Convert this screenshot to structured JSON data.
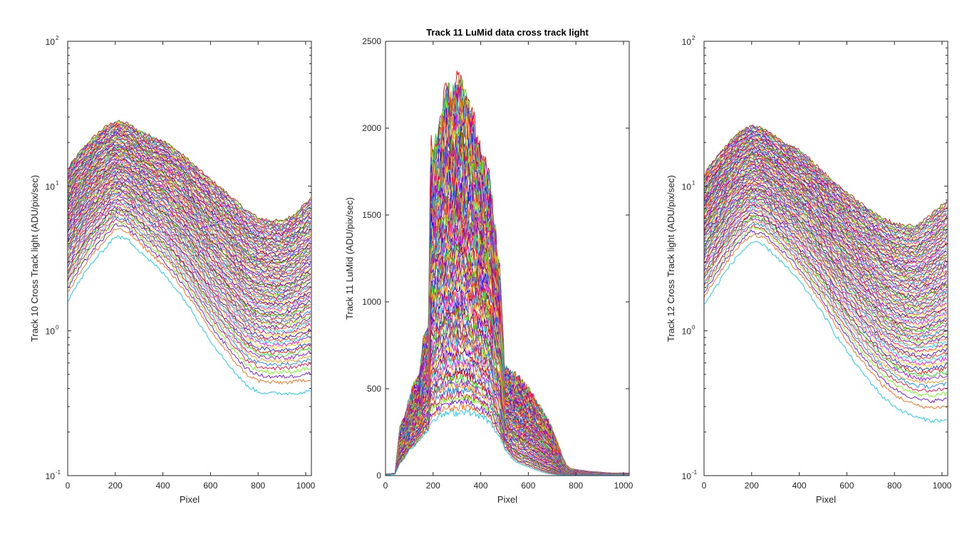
{
  "figure": {
    "background": "#ffffff",
    "axis_color": "#262626",
    "palette": [
      "#ff0000",
      "#ff2a00",
      "#ff6600",
      "#ff9900",
      "#ffcc00",
      "#ffee00",
      "#66ff00",
      "#00ee00",
      "#00e0e0",
      "#00ccff",
      "#0088ff",
      "#0033ff",
      "#3300ff",
      "#7700ff",
      "#aa00ff",
      "#ff00ff",
      "#ff0088",
      "#ff0044"
    ]
  },
  "chart_data": [
    {
      "type": "line",
      "title": "",
      "xlabel": "Pixel",
      "ylabel": "Track 10 Cross Track light (ADU/pix/sec)",
      "xlim": [
        0,
        1024
      ],
      "ylim": [
        0.1,
        100
      ],
      "yscale": "log",
      "xticks": [
        "0",
        "200",
        "400",
        "600",
        "800",
        "1000"
      ],
      "yticks": [
        {
          "base": "10",
          "exp": "-1"
        },
        {
          "base": "10",
          "exp": "0"
        },
        {
          "base": "10",
          "exp": "1"
        },
        {
          "base": "10",
          "exp": "2"
        }
      ],
      "grid": false,
      "legend": "none",
      "series_count": 100,
      "profile": {
        "x": [
          0,
          50,
          100,
          150,
          200,
          250,
          300,
          350,
          400,
          450,
          500,
          550,
          600,
          650,
          700,
          750,
          800,
          850,
          900,
          950,
          1000,
          1024
        ],
        "y_top": [
          13,
          17,
          21,
          25,
          28,
          27,
          24,
          22,
          20.5,
          18,
          15.5,
          13,
          11,
          9.5,
          8,
          6.8,
          6,
          5.8,
          5.7,
          6.3,
          7.6,
          8.2
        ],
        "y_bottom": [
          1.6,
          2.2,
          2.9,
          3.6,
          4.5,
          4.3,
          3.6,
          3.0,
          2.5,
          2.0,
          1.55,
          1.15,
          0.85,
          0.66,
          0.52,
          0.42,
          0.38,
          0.37,
          0.37,
          0.37,
          0.38,
          0.38
        ]
      }
    },
    {
      "type": "line",
      "title": "Track 11 LuMid  data cross track light",
      "xlabel": "Pixel",
      "ylabel": "Track 11 LuMid (ADU/pix/sec)",
      "xlim": [
        0,
        1024
      ],
      "ylim": [
        0,
        2500
      ],
      "yscale": "linear",
      "xticks": [
        "0",
        "200",
        "400",
        "600",
        "800",
        "1000"
      ],
      "yticks": [
        "0",
        "500",
        "1000",
        "1500",
        "2000",
        "2500"
      ],
      "grid": false,
      "legend": "none",
      "series_count": 100,
      "profile": {
        "x": [
          0,
          20,
          40,
          60,
          80,
          100,
          120,
          140,
          160,
          180,
          190,
          200,
          220,
          240,
          260,
          280,
          300,
          320,
          340,
          360,
          380,
          400,
          420,
          440,
          460,
          480,
          500,
          520,
          540,
          560,
          580,
          600,
          620,
          640,
          660,
          680,
          700,
          720,
          740,
          760,
          780,
          800,
          850,
          900,
          950,
          1000,
          1024
        ],
        "y_top": [
          10,
          10,
          15,
          280,
          330,
          450,
          520,
          560,
          780,
          840,
          1900,
          1800,
          1950,
          2100,
          2200,
          2150,
          2250,
          2200,
          2150,
          2100,
          1950,
          1850,
          1750,
          1700,
          1400,
          1200,
          620,
          600,
          580,
          560,
          520,
          500,
          460,
          410,
          370,
          320,
          270,
          200,
          120,
          60,
          40,
          35,
          25,
          20,
          15,
          15,
          15
        ],
        "y_bottom": [
          5,
          5,
          8,
          70,
          100,
          150,
          170,
          200,
          240,
          260,
          310,
          320,
          340,
          350,
          360,
          360,
          360,
          370,
          370,
          360,
          350,
          340,
          330,
          300,
          260,
          220,
          160,
          120,
          90,
          70,
          60,
          50,
          40,
          30,
          20,
          12,
          8,
          5,
          4,
          3,
          3,
          3,
          3,
          3,
          3,
          3,
          3
        ]
      }
    },
    {
      "type": "line",
      "title": "",
      "xlabel": "Pixel",
      "ylabel": "Track 12 Cross Track light (ADU/pix/sec)",
      "xlim": [
        0,
        1024
      ],
      "ylim": [
        0.1,
        100
      ],
      "yscale": "log",
      "xticks": [
        "0",
        "200",
        "400",
        "600",
        "800",
        "1000"
      ],
      "yticks": [
        {
          "base": "10",
          "exp": "-1"
        },
        {
          "base": "10",
          "exp": "0"
        },
        {
          "base": "10",
          "exp": "1"
        },
        {
          "base": "10",
          "exp": "2"
        }
      ],
      "grid": false,
      "legend": "none",
      "series_count": 100,
      "profile": {
        "x": [
          0,
          50,
          100,
          150,
          200,
          250,
          300,
          350,
          400,
          450,
          500,
          550,
          600,
          650,
          700,
          750,
          800,
          850,
          900,
          950,
          1000,
          1024
        ],
        "y_top": [
          12,
          15.5,
          19.5,
          23.5,
          26,
          25,
          22,
          19.5,
          17.5,
          15,
          12.5,
          10.5,
          9,
          7.8,
          6.8,
          6,
          5.5,
          5.3,
          5.4,
          6.2,
          7.4,
          8
        ],
        "y_bottom": [
          1.5,
          2.0,
          2.7,
          3.4,
          4.1,
          3.9,
          3.3,
          2.7,
          2.2,
          1.7,
          1.3,
          0.95,
          0.72,
          0.55,
          0.44,
          0.35,
          0.3,
          0.27,
          0.25,
          0.24,
          0.24,
          0.24
        ]
      }
    }
  ]
}
